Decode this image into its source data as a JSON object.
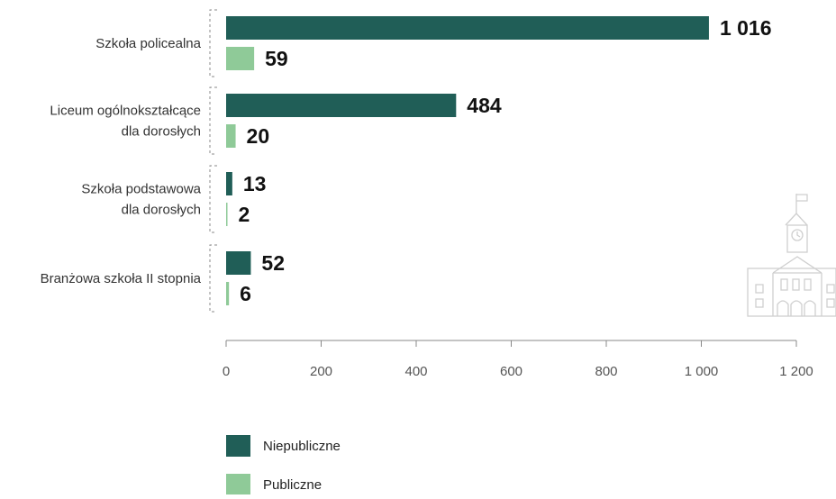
{
  "chart_data": {
    "type": "bar",
    "orientation": "horizontal",
    "categories": [
      [
        "Szkoła policealna"
      ],
      [
        "Liceum ogólnokształcące",
        "dla dorosłych"
      ],
      [
        "Szkoła podstawowa",
        "dla dorosłych"
      ],
      [
        "Branżowa szkoła II stopnia"
      ]
    ],
    "series": [
      {
        "name": "Niepubliczne",
        "values": [
          1016,
          484,
          13,
          52
        ],
        "value_labels": [
          "1 016",
          "484",
          "13",
          "52"
        ],
        "color": "#205e57"
      },
      {
        "name": "Publiczne",
        "values": [
          59,
          20,
          2,
          6
        ],
        "value_labels": [
          "59",
          "20",
          "2",
          "6"
        ],
        "color": "#8fca98"
      }
    ],
    "xlim": [
      0,
      1200
    ],
    "xticks": [
      0,
      200,
      400,
      600,
      800,
      1000,
      1200
    ],
    "xtick_labels": [
      "0",
      "200",
      "400",
      "600",
      "800",
      "1 000",
      "1 200"
    ],
    "grid": false,
    "legend_position": "bottom-left",
    "title": "",
    "xlabel": "",
    "ylabel": ""
  },
  "decoration": {
    "icon": "town-hall-icon",
    "color": "#cfcfcf"
  }
}
